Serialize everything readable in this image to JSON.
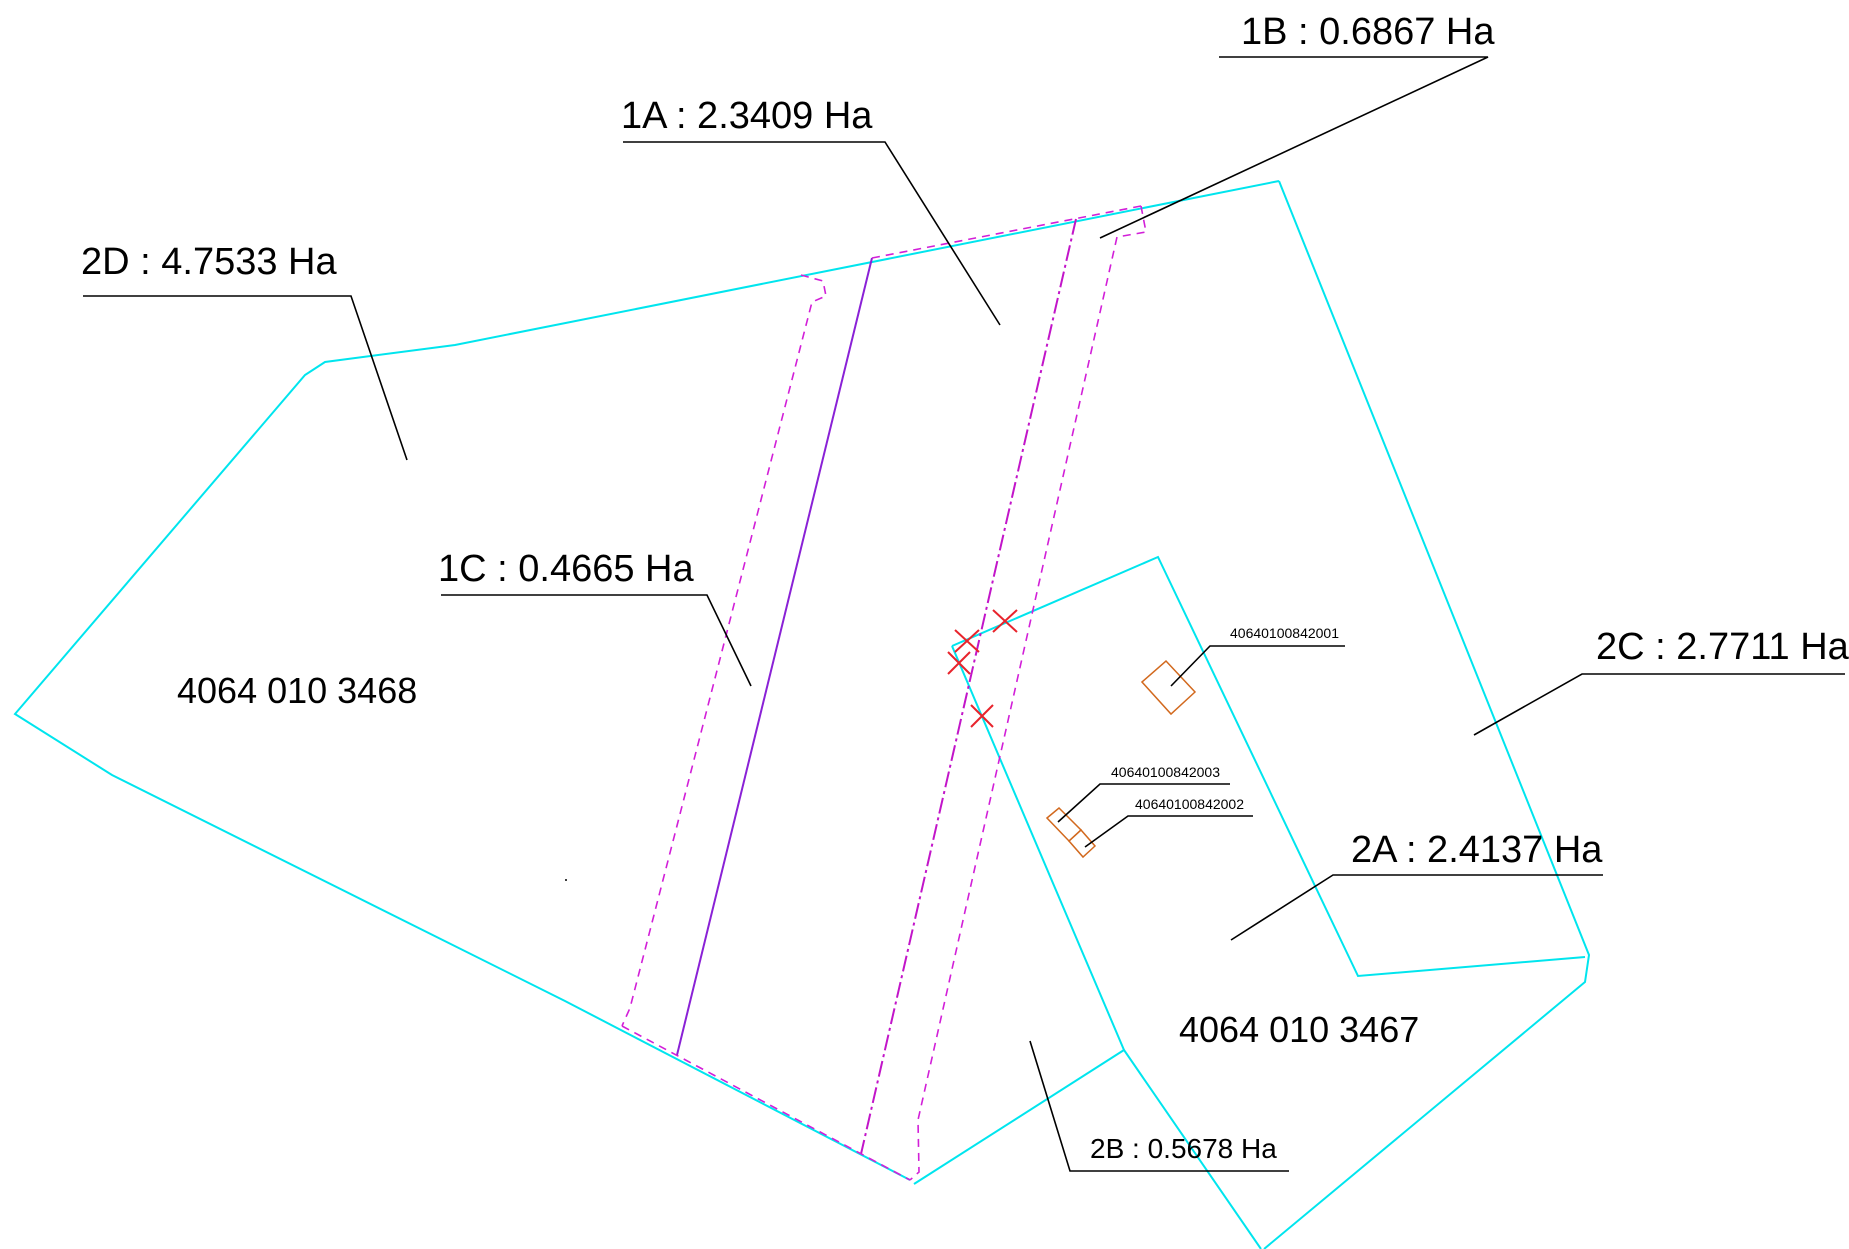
{
  "areas": {
    "a1": "1A : 2.3409 Ha",
    "b1": "1B : 0.6867 Ha",
    "c1": "1C : 0.4665 Ha",
    "a2": "2A : 2.4137 Ha",
    "b2": "2B : 0.5678 Ha",
    "c2": "2C : 2.7711 Ha",
    "d2": "2D : 4.7533 Ha"
  },
  "parcels": {
    "west": "4064 010 3468",
    "east": "4064 010 3467"
  },
  "buildings": {
    "b001": "40640100842001",
    "b002": "40640100842002",
    "b003": "40640100842003"
  },
  "colors": {
    "boundary": "#00e5ee",
    "easement": "#d21fd8",
    "building": "#d2691e",
    "marker": "#e8242c"
  }
}
